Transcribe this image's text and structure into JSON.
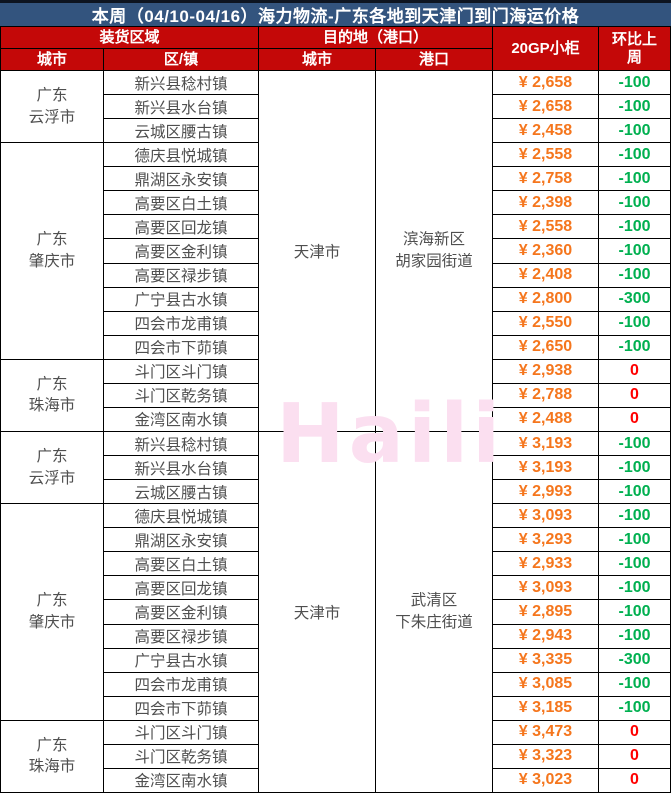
{
  "title": "本周（04/10-04/16）海力物流-广东各地到天津门到门海运价格",
  "header": {
    "loading_area": "装货区域",
    "destination": "目的地（港口）",
    "container_type": "20GP小柜",
    "week_over_week": "环比上周",
    "city": "城市",
    "district": "区/镇",
    "dest_city": "城市",
    "port": "港口"
  },
  "watermark": "Haili",
  "colors": {
    "title_bg": "#33547E",
    "header_bg": "#C40808",
    "price": "#F5761D",
    "decrease": "#00B050",
    "flat": "#FF0000",
    "watermark": "#FBDFF0",
    "body_text": "#4F4F4F"
  },
  "halves": [
    {
      "destination": {
        "city": "天津市",
        "port": "滨海新区\n胡家园街道"
      },
      "sections": [
        {
          "city": "广东\n云浮市",
          "rows": [
            {
              "district": "新兴县稔村镇",
              "price": "¥ 2,658",
              "change": "-100"
            },
            {
              "district": "新兴县水台镇",
              "price": "¥ 2,658",
              "change": "-100"
            },
            {
              "district": "云城区腰古镇",
              "price": "¥ 2,458",
              "change": "-100"
            }
          ]
        },
        {
          "city": "广东\n肇庆市",
          "rows": [
            {
              "district": "德庆县悦城镇",
              "price": "¥ 2,558",
              "change": "-100"
            },
            {
              "district": "鼎湖区永安镇",
              "price": "¥ 2,758",
              "change": "-100"
            },
            {
              "district": "高要区白土镇",
              "price": "¥ 2,398",
              "change": "-100"
            },
            {
              "district": "高要区回龙镇",
              "price": "¥ 2,558",
              "change": "-100"
            },
            {
              "district": "高要区金利镇",
              "price": "¥ 2,360",
              "change": "-100"
            },
            {
              "district": "高要区禄步镇",
              "price": "¥ 2,408",
              "change": "-100"
            },
            {
              "district": "广宁县古水镇",
              "price": "¥ 2,800",
              "change": "-300"
            },
            {
              "district": "四会市龙甫镇",
              "price": "¥ 2,550",
              "change": "-100"
            },
            {
              "district": "四会市下茆镇",
              "price": "¥ 2,650",
              "change": "-100"
            }
          ]
        },
        {
          "city": "广东\n珠海市",
          "rows": [
            {
              "district": "斗门区斗门镇",
              "price": "¥ 2,938",
              "change": "0"
            },
            {
              "district": "斗门区乾务镇",
              "price": "¥ 2,788",
              "change": "0"
            },
            {
              "district": "金湾区南水镇",
              "price": "¥ 2,488",
              "change": "0"
            }
          ]
        }
      ]
    },
    {
      "destination": {
        "city": "天津市",
        "port": "武清区\n下朱庄街道"
      },
      "sections": [
        {
          "city": "广东\n云浮市",
          "rows": [
            {
              "district": "新兴县稔村镇",
              "price": "¥ 3,193",
              "change": "-100"
            },
            {
              "district": "新兴县水台镇",
              "price": "¥ 3,193",
              "change": "-100"
            },
            {
              "district": "云城区腰古镇",
              "price": "¥ 2,993",
              "change": "-100"
            }
          ]
        },
        {
          "city": "广东\n肇庆市",
          "rows": [
            {
              "district": "德庆县悦城镇",
              "price": "¥ 3,093",
              "change": "-100"
            },
            {
              "district": "鼎湖区永安镇",
              "price": "¥ 3,293",
              "change": "-100"
            },
            {
              "district": "高要区白土镇",
              "price": "¥ 2,933",
              "change": "-100"
            },
            {
              "district": "高要区回龙镇",
              "price": "¥ 3,093",
              "change": "-100"
            },
            {
              "district": "高要区金利镇",
              "price": "¥ 2,895",
              "change": "-100"
            },
            {
              "district": "高要区禄步镇",
              "price": "¥ 2,943",
              "change": "-100"
            },
            {
              "district": "广宁县古水镇",
              "price": "¥ 3,335",
              "change": "-300"
            },
            {
              "district": "四会市龙甫镇",
              "price": "¥ 3,085",
              "change": "-100"
            },
            {
              "district": "四会市下茆镇",
              "price": "¥ 3,185",
              "change": "-100"
            }
          ]
        },
        {
          "city": "广东\n珠海市",
          "rows": [
            {
              "district": "斗门区斗门镇",
              "price": "¥ 3,473",
              "change": "0"
            },
            {
              "district": "斗门区乾务镇",
              "price": "¥ 3,323",
              "change": "0"
            },
            {
              "district": "金湾区南水镇",
              "price": "¥ 3,023",
              "change": "0"
            }
          ]
        }
      ]
    }
  ]
}
